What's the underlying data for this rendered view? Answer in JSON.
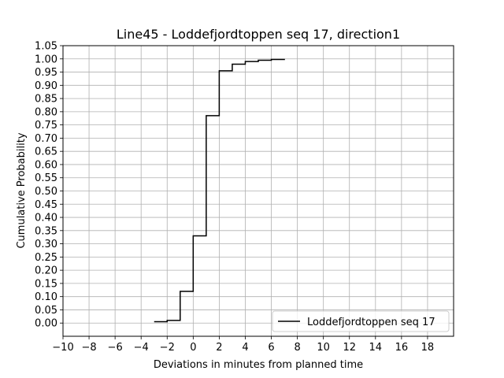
{
  "chart_data": {
    "type": "line",
    "drawstyle": "steps-post",
    "title": "Line45 - Loddefjordtoppen seq 17, direction1",
    "xlabel": "Deviations in minutes from planned time",
    "ylabel": "Cumulative Probability",
    "xlim": [
      -10,
      20
    ],
    "ylim": [
      -0.05,
      1.05
    ],
    "xticks": [
      -10,
      -8,
      -6,
      -4,
      -2,
      0,
      2,
      4,
      6,
      8,
      10,
      12,
      14,
      16,
      18
    ],
    "xtick_labels": [
      "−10",
      "−8",
      "−6",
      "−4",
      "−2",
      "0",
      "2",
      "4",
      "6",
      "8",
      "10",
      "12",
      "14",
      "16",
      "18"
    ],
    "yticks": [
      0.0,
      0.05,
      0.1,
      0.15,
      0.2,
      0.25,
      0.3,
      0.35,
      0.4,
      0.45,
      0.5,
      0.55,
      0.6,
      0.65,
      0.7,
      0.75,
      0.8,
      0.85,
      0.9,
      0.95,
      1.0,
      1.05
    ],
    "ytick_labels": [
      "0.00",
      "0.05",
      "0.10",
      "0.15",
      "0.20",
      "0.25",
      "0.30",
      "0.35",
      "0.40",
      "0.45",
      "0.50",
      "0.55",
      "0.60",
      "0.65",
      "0.70",
      "0.75",
      "0.80",
      "0.85",
      "0.90",
      "0.95",
      "1.00",
      "1.05"
    ],
    "grid": true,
    "legend_position": "lower-right",
    "series": [
      {
        "name": "Loddefjordtoppen seq 17",
        "color": "#000000",
        "x": [
          -3,
          -2,
          -1,
          0,
          1,
          2,
          3,
          4,
          5,
          6,
          7
        ],
        "y": [
          0.005,
          0.01,
          0.12,
          0.33,
          0.785,
          0.955,
          0.98,
          0.99,
          0.995,
          0.998,
          1.0
        ]
      }
    ]
  }
}
